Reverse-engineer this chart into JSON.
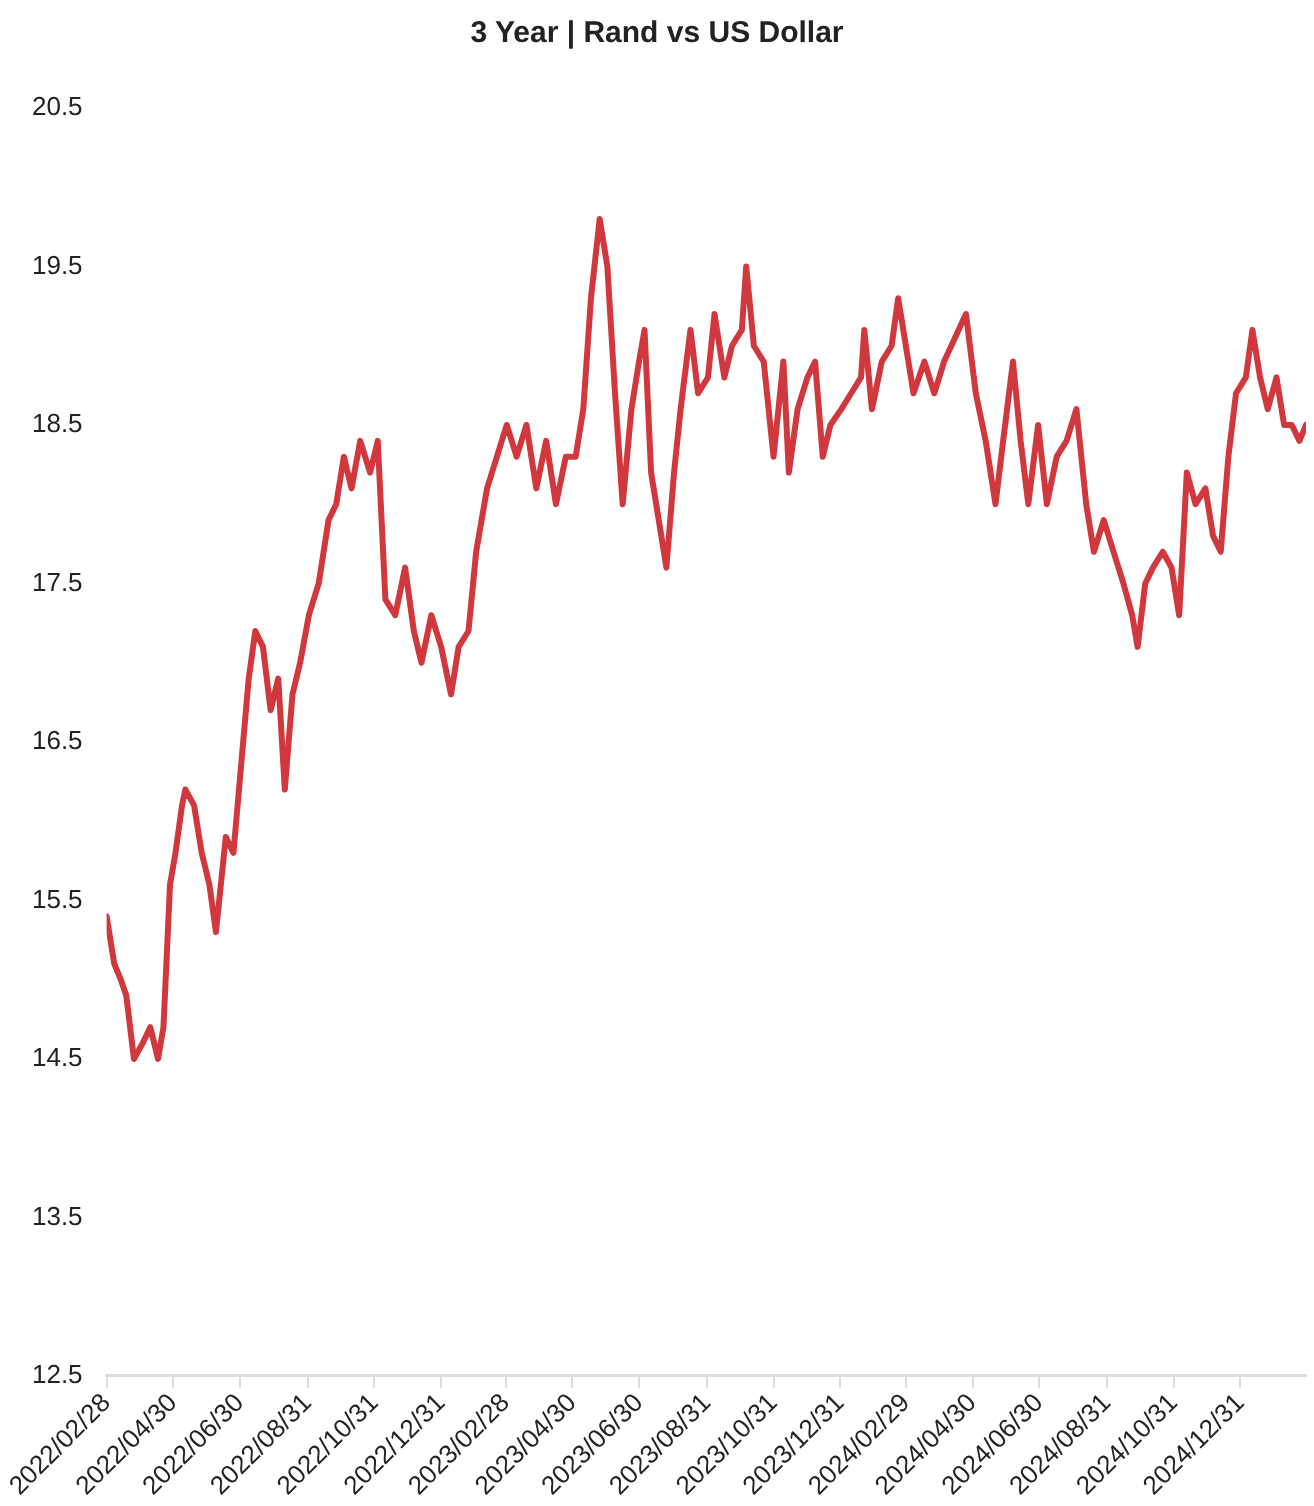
{
  "chart_data": {
    "type": "line",
    "title": "3 Year | Rand vs US Dollar",
    "x": [
      "2022-02-28",
      "2022-03-07",
      "2022-03-13",
      "2022-03-18",
      "2022-03-25",
      "2022-04-02",
      "2022-04-09",
      "2022-04-16",
      "2022-04-21",
      "2022-04-27",
      "2022-05-02",
      "2022-05-08",
      "2022-05-11",
      "2022-05-19",
      "2022-05-26",
      "2022-06-02",
      "2022-06-08",
      "2022-06-17",
      "2022-06-24",
      "2022-07-08",
      "2022-07-14",
      "2022-07-21",
      "2022-07-28",
      "2022-08-04",
      "2022-08-10",
      "2022-08-17",
      "2022-08-24",
      "2022-09-01",
      "2022-09-10",
      "2022-09-19",
      "2022-09-26",
      "2022-10-03",
      "2022-10-10",
      "2022-10-18",
      "2022-10-27",
      "2022-11-03",
      "2022-11-10",
      "2022-11-19",
      "2022-11-28",
      "2022-12-06",
      "2022-12-13",
      "2022-12-22",
      "2022-12-31",
      "2023-01-09",
      "2023-01-16",
      "2023-01-25",
      "2023-02-01",
      "2023-02-11",
      "2023-02-20",
      "2023-03-01",
      "2023-03-10",
      "2023-03-19",
      "2023-03-28",
      "2023-04-06",
      "2023-04-15",
      "2023-04-24",
      "2023-05-03",
      "2023-05-10",
      "2023-05-17",
      "2023-05-25",
      "2023-06-01",
      "2023-06-08",
      "2023-06-15",
      "2023-06-23",
      "2023-06-30",
      "2023-07-05",
      "2023-07-11",
      "2023-07-18",
      "2023-07-25",
      "2023-08-01",
      "2023-08-07",
      "2023-08-16",
      "2023-08-23",
      "2023-09-01",
      "2023-09-07",
      "2023-09-16",
      "2023-09-23",
      "2023-10-02",
      "2023-10-06",
      "2023-10-13",
      "2023-10-22",
      "2023-10-31",
      "2023-11-09",
      "2023-11-14",
      "2023-11-22",
      "2023-12-01",
      "2023-12-08",
      "2023-12-15",
      "2023-12-22",
      "2024-01-01",
      "2024-01-10",
      "2024-01-19",
      "2024-01-22",
      "2024-01-29",
      "2024-02-07",
      "2024-02-16",
      "2024-02-22",
      "2024-02-29",
      "2024-03-07",
      "2024-03-17",
      "2024-03-26",
      "2024-04-04",
      "2024-04-24",
      "2024-05-03",
      "2024-05-12",
      "2024-05-21",
      "2024-05-28",
      "2024-06-06",
      "2024-06-13",
      "2024-06-20",
      "2024-06-29",
      "2024-07-07",
      "2024-07-16",
      "2024-07-25",
      "2024-08-03",
      "2024-08-12",
      "2024-08-19",
      "2024-08-28",
      "2024-09-06",
      "2024-09-15",
      "2024-09-23",
      "2024-09-28",
      "2024-10-05",
      "2024-10-12",
      "2024-10-21",
      "2024-10-29",
      "2024-11-05",
      "2024-11-12",
      "2024-11-20",
      "2024-11-29",
      "2024-12-06",
      "2024-12-13",
      "2024-12-20",
      "2024-12-27",
      "2025-01-05",
      "2025-01-11",
      "2025-01-18",
      "2025-01-25",
      "2025-02-02",
      "2025-02-09",
      "2025-02-16",
      "2025-02-23",
      "2025-03-01"
    ],
    "series": [
      {
        "color": "#d0383e",
        "values": [
          15.4,
          15.1,
          15.0,
          14.9,
          14.5,
          14.6,
          14.7,
          14.5,
          14.7,
          15.6,
          15.8,
          16.1,
          16.2,
          16.1,
          15.8,
          15.6,
          15.3,
          15.9,
          15.8,
          16.9,
          17.2,
          17.1,
          16.7,
          16.9,
          16.2,
          16.8,
          17.0,
          17.3,
          17.5,
          17.9,
          18.0,
          18.3,
          18.1,
          18.4,
          18.2,
          18.4,
          17.4,
          17.3,
          17.6,
          17.2,
          17.0,
          17.3,
          17.1,
          16.8,
          17.1,
          17.2,
          17.7,
          18.1,
          18.3,
          18.5,
          18.3,
          18.5,
          18.1,
          18.4,
          18.0,
          18.3,
          18.3,
          18.6,
          19.3,
          19.8,
          19.5,
          18.7,
          18.0,
          18.6,
          18.9,
          19.1,
          18.2,
          17.9,
          17.6,
          18.2,
          18.6,
          19.1,
          18.7,
          18.8,
          19.2,
          18.8,
          19.0,
          19.1,
          19.5,
          19.0,
          18.9,
          18.3,
          18.9,
          18.2,
          18.6,
          18.8,
          18.9,
          18.3,
          18.5,
          18.6,
          18.7,
          18.8,
          19.1,
          18.6,
          18.9,
          19.0,
          19.3,
          19.0,
          18.7,
          18.9,
          18.7,
          18.9,
          19.2,
          18.7,
          18.4,
          18.0,
          18.4,
          18.9,
          18.4,
          18.0,
          18.5,
          18.0,
          18.3,
          18.4,
          18.6,
          18.0,
          17.7,
          17.9,
          17.7,
          17.5,
          17.3,
          17.1,
          17.5,
          17.6,
          17.7,
          17.6,
          17.3,
          18.2,
          18.0,
          18.1,
          17.8,
          17.7,
          18.3,
          18.7,
          18.8,
          19.1,
          18.8,
          18.6,
          18.8,
          18.5,
          18.5,
          18.4,
          18.5
        ]
      }
    ],
    "xlim": [
      "2022-02-28",
      "2025-03-01"
    ],
    "xticks": [
      {
        "value": "2022-02-28",
        "label": "2022/02/28"
      },
      {
        "value": "2022-04-30",
        "label": "2022/04/30"
      },
      {
        "value": "2022-06-30",
        "label": "2022/06/30"
      },
      {
        "value": "2022-08-31",
        "label": "2022/08/31"
      },
      {
        "value": "2022-10-31",
        "label": "2022/10/31"
      },
      {
        "value": "2022-12-31",
        "label": "2022/12/31"
      },
      {
        "value": "2023-02-28",
        "label": "2023/02/28"
      },
      {
        "value": "2023-04-30",
        "label": "2023/04/30"
      },
      {
        "value": "2023-06-30",
        "label": "2023/06/30"
      },
      {
        "value": "2023-08-31",
        "label": "2023/08/31"
      },
      {
        "value": "2023-10-31",
        "label": "2023/10/31"
      },
      {
        "value": "2023-12-31",
        "label": "2023/12/31"
      },
      {
        "value": "2024-02-29",
        "label": "2024/02/29"
      },
      {
        "value": "2024-04-30",
        "label": "2024/04/30"
      },
      {
        "value": "2024-06-30",
        "label": "2024/06/30"
      },
      {
        "value": "2024-08-31",
        "label": "2024/08/31"
      },
      {
        "value": "2024-10-31",
        "label": "2024/10/31"
      },
      {
        "value": "2024-12-31",
        "label": "2024/12/31"
      }
    ],
    "ylim": [
      12.5,
      20.5
    ],
    "yticks": [
      12.5,
      13.5,
      14.5,
      15.5,
      16.5,
      17.5,
      18.5,
      19.5,
      20.5
    ],
    "grid": false,
    "legend": false,
    "marker": "none",
    "line_style": "solid"
  }
}
